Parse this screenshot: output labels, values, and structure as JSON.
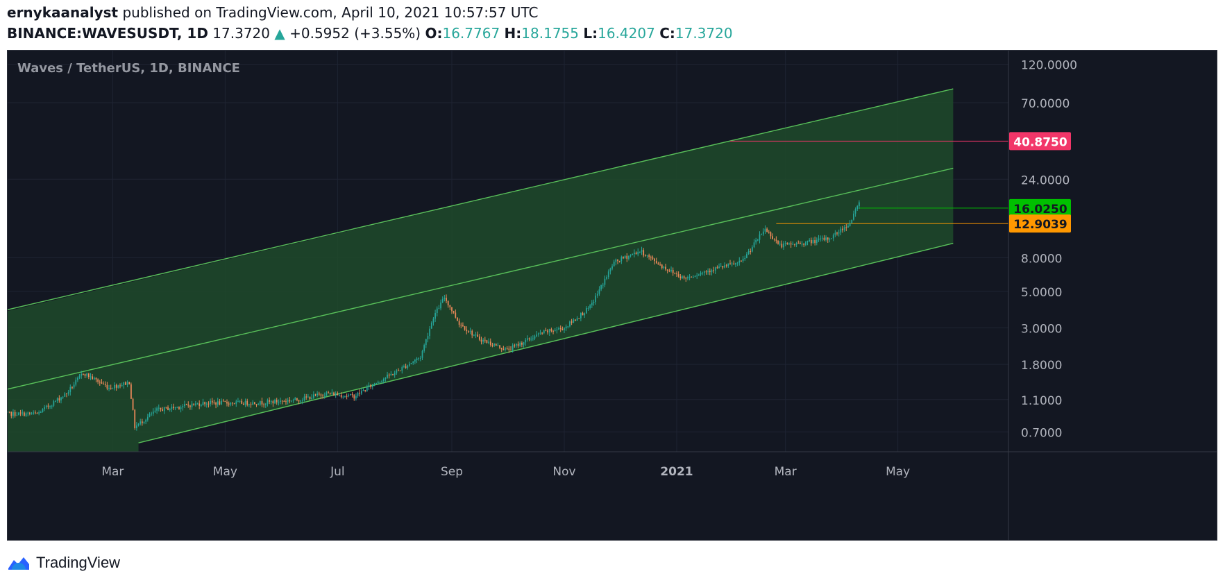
{
  "header": {
    "author": "ernykaanalyst",
    "published_text": "published on TradingView.com, April 10, 2021 10:57:57 UTC",
    "symbol": "BINANCE:WAVESUSDT, 1D",
    "last": "17.3720",
    "change_arrow": "▲",
    "change": "+0.5952 (+3.55%)",
    "o_label": "O:",
    "o_value": "16.7767",
    "h_label": "H:",
    "h_value": "18.1755",
    "l_label": "L:",
    "l_value": "16.4207",
    "c_label": "C:",
    "c_value": "17.3720"
  },
  "footer": {
    "brand": "TradingView"
  },
  "chart_data": {
    "type": "candlestick",
    "title": "Waves / TetherUS, 1D, BINANCE",
    "y_scale": "log",
    "y_ticks": [
      "120.0000",
      "70.0000",
      "24.0000",
      "8.0000",
      "5.0000",
      "3.0000",
      "1.8000",
      "1.1000",
      "0.7000"
    ],
    "x_ticks": [
      "Mar",
      "May",
      "Jul",
      "Sep",
      "Nov",
      "2021",
      "Mar",
      "May"
    ],
    "price_labels": [
      {
        "value": "40.8750",
        "color": "#f23669"
      },
      {
        "value": "16.0250",
        "color": "#00c000"
      },
      {
        "value": "12.9039",
        "color": "#ff9800"
      }
    ],
    "price_path": [
      [
        "2020-01-01",
        0.9
      ],
      [
        "2020-01-20",
        0.9
      ],
      [
        "2020-02-05",
        1.2
      ],
      [
        "2020-02-14",
        1.6
      ],
      [
        "2020-02-28",
        1.3
      ],
      [
        "2020-03-10",
        1.4
      ],
      [
        "2020-03-13",
        0.75
      ],
      [
        "2020-03-25",
        0.95
      ],
      [
        "2020-04-20",
        1.05
      ],
      [
        "2020-05-20",
        1.05
      ],
      [
        "2020-06-10",
        1.1
      ],
      [
        "2020-06-25",
        1.2
      ],
      [
        "2020-07-10",
        1.15
      ],
      [
        "2020-07-22",
        1.4
      ],
      [
        "2020-08-01",
        1.6
      ],
      [
        "2020-08-15",
        2.0
      ],
      [
        "2020-08-22",
        3.5
      ],
      [
        "2020-08-28",
        4.6
      ],
      [
        "2020-09-05",
        3.2
      ],
      [
        "2020-09-15",
        2.6
      ],
      [
        "2020-10-01",
        2.2
      ],
      [
        "2020-10-20",
        2.8
      ],
      [
        "2020-11-01",
        3.0
      ],
      [
        "2020-11-15",
        4.0
      ],
      [
        "2020-11-28",
        7.5
      ],
      [
        "2020-12-12",
        8.8
      ],
      [
        "2020-12-25",
        7.0
      ],
      [
        "2021-01-05",
        6.0
      ],
      [
        "2021-01-20",
        6.8
      ],
      [
        "2021-02-05",
        7.5
      ],
      [
        "2021-02-18",
        12.0
      ],
      [
        "2021-02-26",
        9.5
      ],
      [
        "2021-03-10",
        9.8
      ],
      [
        "2021-03-25",
        10.5
      ],
      [
        "2021-04-05",
        13.0
      ],
      [
        "2021-04-10",
        17.3
      ]
    ],
    "channel_lines": [
      {
        "role": "upper",
        "from": [
          "2020-01-01",
          3.8
        ],
        "to": [
          "2021-05-31",
          85
        ]
      },
      {
        "role": "middle",
        "from": [
          "2020-01-01",
          1.25
        ],
        "to": [
          "2021-05-31",
          28
        ]
      },
      {
        "role": "lower",
        "from": [
          "2020-03-15",
          0.6
        ],
        "to": [
          "2021-05-31",
          9.8
        ]
      }
    ],
    "horizontal_levels": [
      {
        "value": 40.875,
        "from": "2021-01-30",
        "color": "#f23669"
      },
      {
        "value": 16.025,
        "from": "2021-04-10",
        "color": "#00c000"
      },
      {
        "value": 12.9039,
        "from": "2021-02-24",
        "color": "#ff9800"
      }
    ],
    "colors": {
      "background": "#131722",
      "up": "#26a69a",
      "down": "#ef8a5a",
      "channel": "#59c15a",
      "channel_fill": "#1e4a2a"
    }
  }
}
